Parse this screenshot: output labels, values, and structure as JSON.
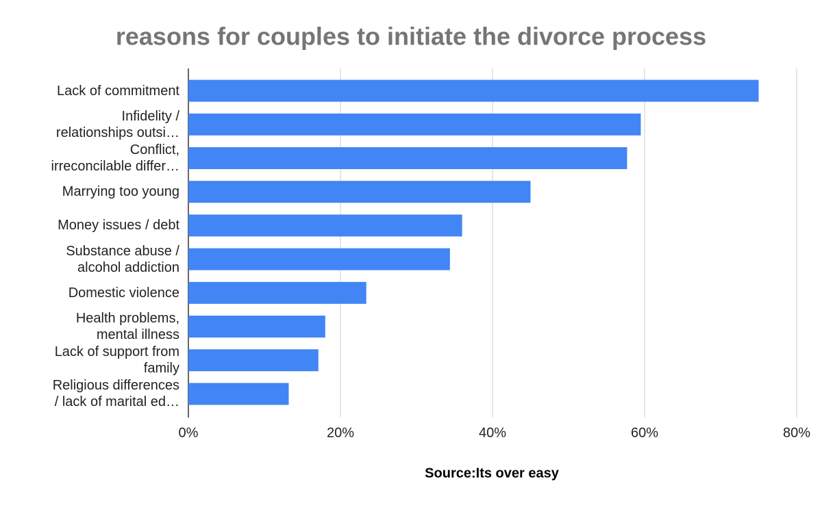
{
  "chart_data": {
    "type": "bar",
    "orientation": "horizontal",
    "title": "reasons for couples to initiate the divorce process",
    "annotation": "Source:Its over easy",
    "categories": [
      "Lack of commitment",
      "Infidelity /\nrelationships outsi…",
      "Conflict,\nirreconcilable differ…",
      "Marrying too young",
      "Money issues / debt",
      "Substance abuse /\nalcohol addiction",
      "Domestic violence",
      "Health problems,\nmental illness",
      "Lack of support from\nfamily",
      "Religious differences\n/ lack of marital ed…"
    ],
    "values": [
      75,
      59.5,
      57.7,
      45,
      36,
      34.4,
      23.4,
      18,
      17.1,
      13.2
    ],
    "color": "#4285f4",
    "xlim": [
      0,
      80
    ],
    "xticks": [
      {
        "value": 0,
        "label": "0%"
      },
      {
        "value": 20,
        "label": "20%"
      },
      {
        "value": 40,
        "label": "40%"
      },
      {
        "value": 60,
        "label": "60%"
      },
      {
        "value": 80,
        "label": "80%"
      }
    ],
    "grid": true
  }
}
